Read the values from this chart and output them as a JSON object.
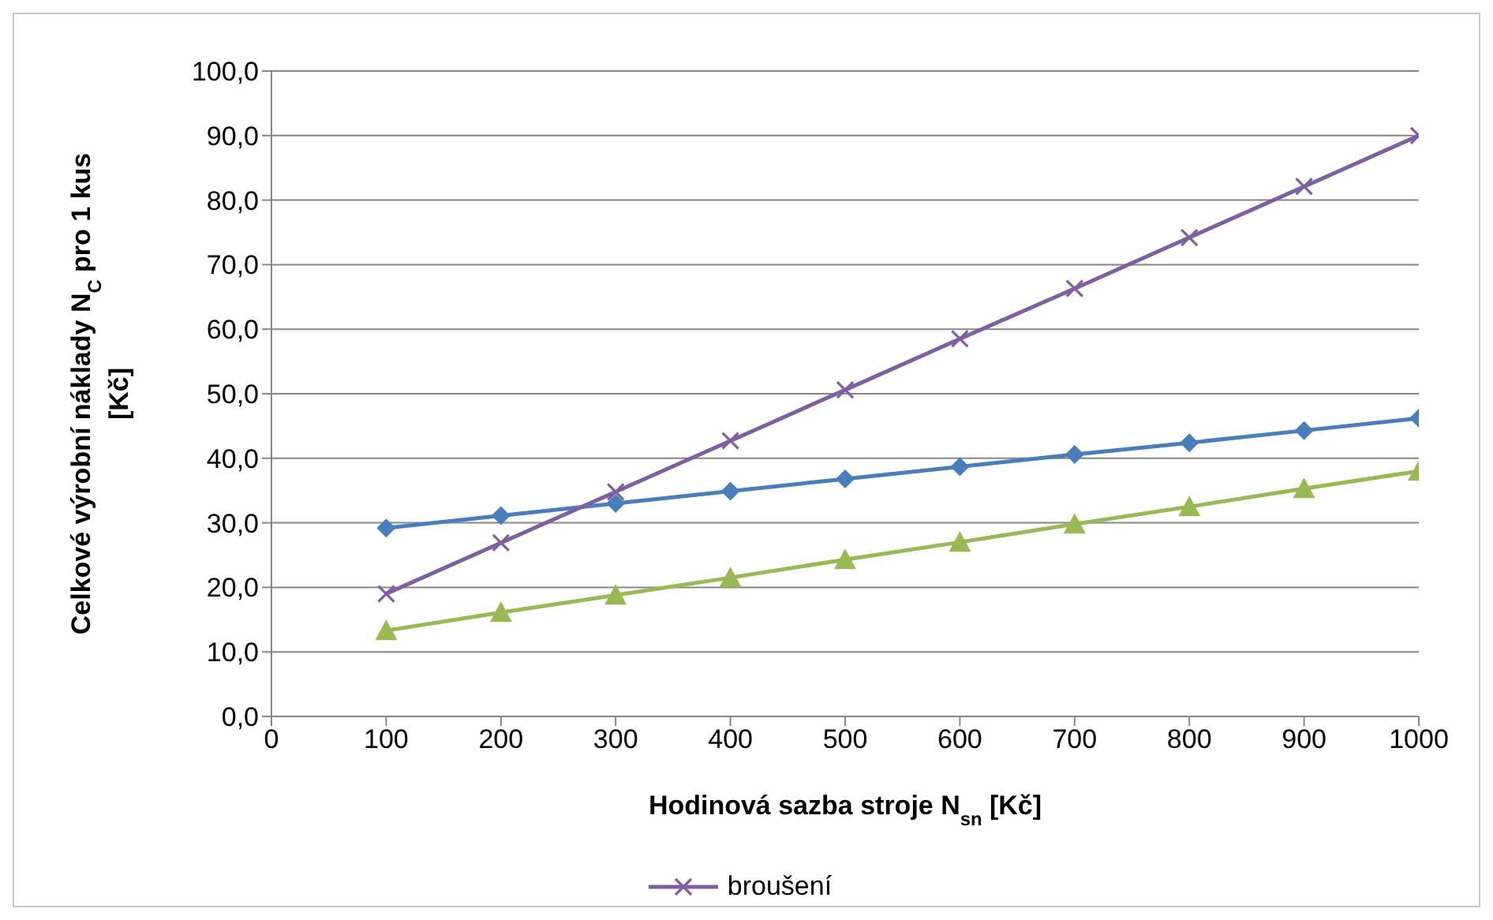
{
  "chart_data": {
    "type": "line",
    "xlabel": "Hodinová sazba stroje N$_{sn}$ [Kč]",
    "ylabel": "Celkové výrobní náklady N$_{C}$ pro 1 kus [Kč]",
    "x": [
      100,
      200,
      300,
      400,
      500,
      600,
      700,
      800,
      900,
      1000
    ],
    "xlim": [
      0,
      1000
    ],
    "xticks": [
      0,
      100,
      200,
      300,
      400,
      500,
      600,
      700,
      800,
      900,
      1000
    ],
    "ylim": [
      0,
      100
    ],
    "yticks": [
      {
        "value": 0,
        "label": "0,0"
      },
      {
        "value": 10,
        "label": "10,0"
      },
      {
        "value": 20,
        "label": "20,0"
      },
      {
        "value": 30,
        "label": "30,0"
      },
      {
        "value": 40,
        "label": "40,0"
      },
      {
        "value": 50,
        "label": "50,0"
      },
      {
        "value": 60,
        "label": "60,0"
      },
      {
        "value": 70,
        "label": "70,0"
      },
      {
        "value": 80,
        "label": "80,0"
      },
      {
        "value": 90,
        "label": "90,0"
      },
      {
        "value": 100,
        "label": "100,0"
      }
    ],
    "grid": "y",
    "legend": "bottom",
    "series": [
      {
        "color": "#4a7ebb",
        "marker": "diamond",
        "values": [
          29.2,
          31.1,
          33.0,
          34.9,
          36.8,
          38.7,
          40.6,
          42.4,
          44.3,
          46.2
        ]
      },
      {
        "color": "#98b954",
        "marker": "triangle",
        "values": [
          13.3,
          16.1,
          18.8,
          21.5,
          24.3,
          27.0,
          29.8,
          32.5,
          35.3,
          38.0
        ]
      },
      {
        "name": "broušení",
        "color": "#7d60a0",
        "marker": "cross",
        "values": [
          19.0,
          26.9,
          34.8,
          42.7,
          50.6,
          58.5,
          66.3,
          74.2,
          82.1,
          90.0
        ]
      }
    ]
  }
}
